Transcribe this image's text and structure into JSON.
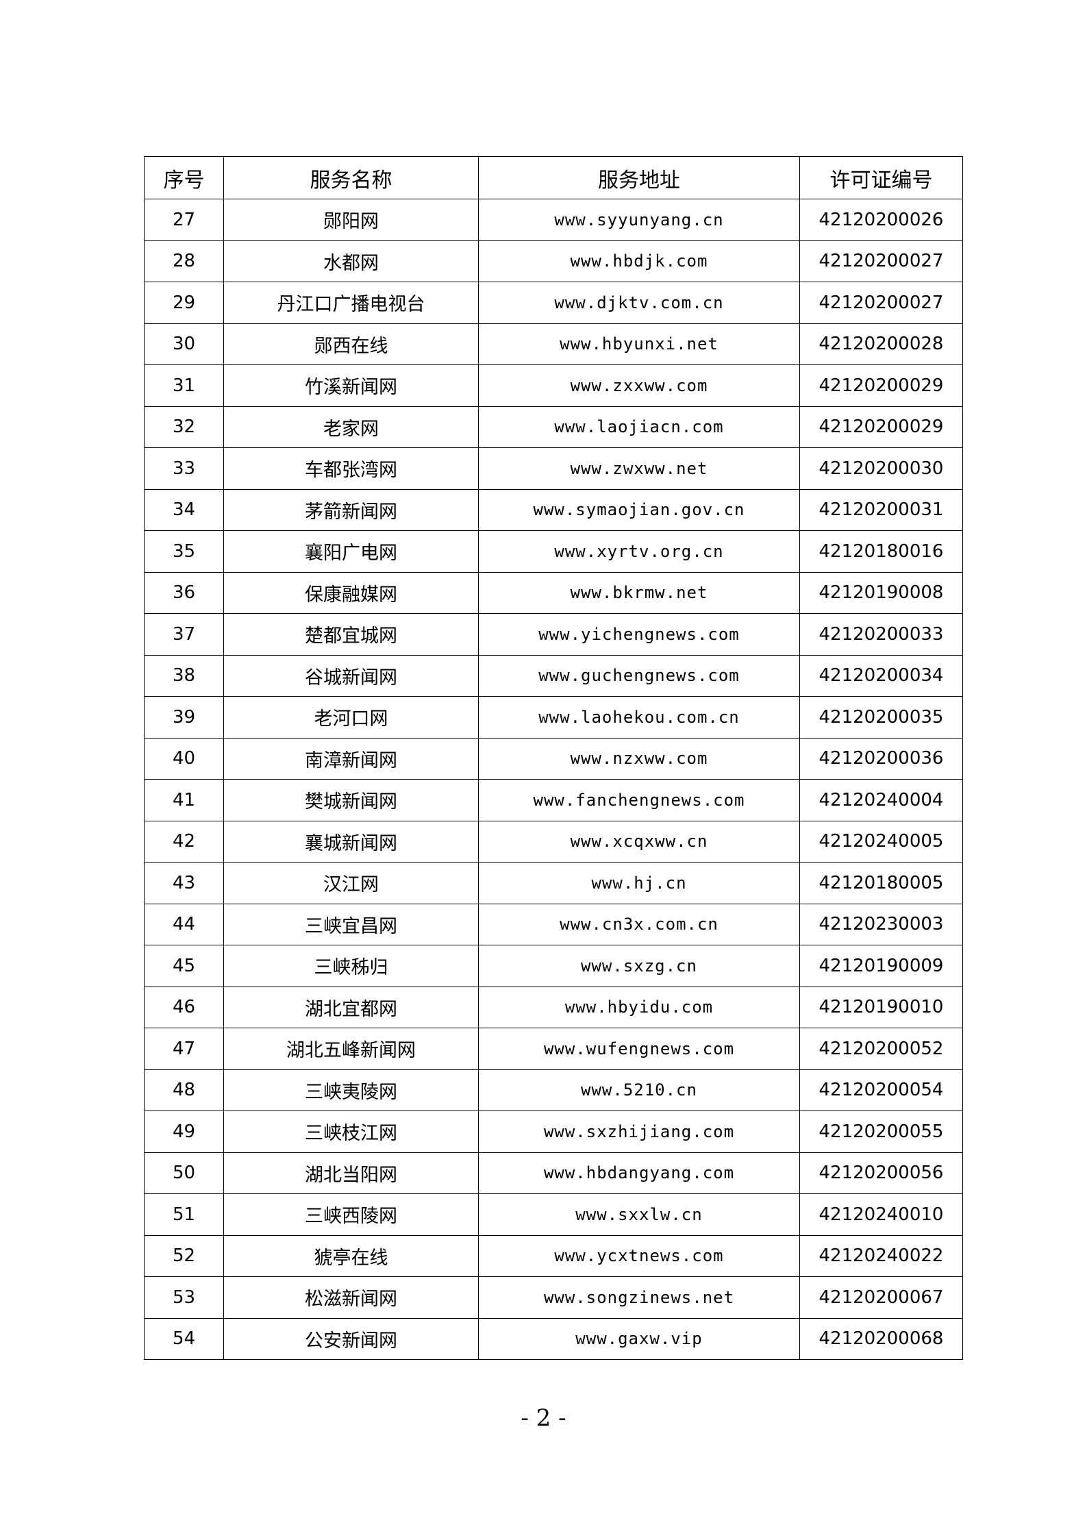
{
  "table": {
    "headers": [
      "序号",
      "服务名称",
      "服务地址",
      "许可证编号"
    ],
    "rows": [
      [
        "27",
        "郧阳网",
        "www.syyunyang.cn",
        "42120200026"
      ],
      [
        "28",
        "水都网",
        "www.hbdjk.com",
        "42120200027"
      ],
      [
        "29",
        "丹江口广播电视台",
        "www.djktv.com.cn",
        "42120200027"
      ],
      [
        "30",
        "郧西在线",
        "www.hbyunxi.net",
        "42120200028"
      ],
      [
        "31",
        "竹溪新闻网",
        "www.zxxww.com",
        "42120200029"
      ],
      [
        "32",
        "老家网",
        "www.laojiacn.com",
        "42120200029"
      ],
      [
        "33",
        "车都张湾网",
        "www.zwxww.net",
        "42120200030"
      ],
      [
        "34",
        "茅箭新闻网",
        "www.symaojian.gov.cn",
        "42120200031"
      ],
      [
        "35",
        "襄阳广电网",
        "www.xyrtv.org.cn",
        "42120180016"
      ],
      [
        "36",
        "保康融媒网",
        "www.bkrmw.net",
        "42120190008"
      ],
      [
        "37",
        "楚都宜城网",
        "www.yichengnews.com",
        "42120200033"
      ],
      [
        "38",
        "谷城新闻网",
        "www.guchengnews.com",
        "42120200034"
      ],
      [
        "39",
        "老河口网",
        "www.laohekou.com.cn",
        "42120200035"
      ],
      [
        "40",
        "南漳新闻网",
        "www.nzxww.com",
        "42120200036"
      ],
      [
        "41",
        "樊城新闻网",
        "www.fanchengnews.com",
        "42120240004"
      ],
      [
        "42",
        "襄城新闻网",
        "www.xcqxww.cn",
        "42120240005"
      ],
      [
        "43",
        "汉江网",
        "www.hj.cn",
        "42120180005"
      ],
      [
        "44",
        "三峡宜昌网",
        "www.cn3x.com.cn",
        "42120230003"
      ],
      [
        "45",
        "三峡秭归",
        "www.sxzg.cn",
        "42120190009"
      ],
      [
        "46",
        "湖北宜都网",
        "www.hbyidu.com",
        "42120190010"
      ],
      [
        "47",
        "湖北五峰新闻网",
        "www.wufengnews.com",
        "42120200052"
      ],
      [
        "48",
        "三峡夷陵网",
        "www.5210.cn",
        "42120200054"
      ],
      [
        "49",
        "三峡枝江网",
        "www.sxzhijiang.com",
        "42120200055"
      ],
      [
        "50",
        "湖北当阳网",
        "www.hbdangyang.com",
        "42120200056"
      ],
      [
        "51",
        "三峡西陵网",
        "www.sxxlw.cn",
        "42120240010"
      ],
      [
        "52",
        "猇亭在线",
        "www.ycxtnews.com",
        "42120240022"
      ],
      [
        "53",
        "松滋新闻网",
        "www.songzinews.net",
        "42120200067"
      ],
      [
        "54",
        "公安新闻网",
        "www.gaxw.vip",
        "42120200068"
      ]
    ]
  },
  "page_number": "- 2 -"
}
